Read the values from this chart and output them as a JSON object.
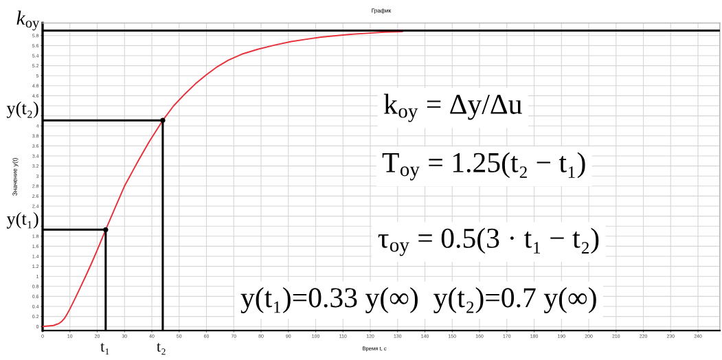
{
  "chart_data": {
    "type": "line",
    "title": "График",
    "xlabel": "Время t, с",
    "ylabel": "Значение y(t)",
    "xlim": [
      0,
      248
    ],
    "xticks": [
      0,
      10,
      20,
      30,
      40,
      50,
      60,
      70,
      80,
      90,
      100,
      110,
      120,
      130,
      140,
      150,
      160,
      170,
      180,
      190,
      200,
      210,
      220,
      230,
      240
    ],
    "ylim": [
      -0.08,
      6.05
    ],
    "yticks": [
      0,
      0.2,
      0.4,
      0.6,
      0.8,
      1,
      1.2,
      1.4,
      1.6,
      1.8,
      {
        "value": 2,
        "label": null
      },
      {
        "value": 2.2,
        "label": null
      },
      2.4,
      2.6,
      2.8,
      3,
      3.2,
      3.4,
      3.6,
      3.8,
      4,
      {
        "value": 4.2,
        "label": null
      },
      {
        "value": 4.4,
        "label": null
      },
      4.6,
      4.8,
      5,
      5.2,
      5.4,
      5.6,
      5.8
    ],
    "grid": true,
    "series": [
      {
        "color": "#e8303a",
        "x": [
          0,
          2,
          4,
          5,
          6,
          7,
          8,
          9,
          10,
          12,
          14,
          16,
          18,
          20,
          23.1,
          26.5,
          30,
          33,
          35,
          39,
          44,
          48,
          52,
          56,
          60,
          64,
          68,
          73,
          79,
          85,
          91,
          97,
          102,
          108,
          114,
          120,
          125,
          132
        ],
        "values": [
          0,
          0.01,
          0.02,
          0.04,
          0.06,
          0.1,
          0.16,
          0.25,
          0.35,
          0.57,
          0.8,
          1.03,
          1.27,
          1.52,
          1.93,
          2.36,
          2.8,
          3.1,
          3.3,
          3.68,
          4.11,
          4.4,
          4.63,
          4.84,
          5.02,
          5.18,
          5.31,
          5.43,
          5.53,
          5.61,
          5.68,
          5.73,
          5.77,
          5.8,
          5.83,
          5.85,
          5.87,
          5.88
        ]
      },
      {
        "type": "line",
        "color": "#000000",
        "x": [
          0,
          23.1,
          23.1
        ],
        "values": [
          1.93,
          1.93,
          -0.08
        ]
      },
      {
        "type": "line",
        "color": "#000000",
        "x": [
          0,
          44,
          44
        ],
        "values": [
          4.11,
          4.11,
          -0.08
        ]
      },
      {
        "type": "scatter",
        "color": "#000000",
        "marker": "circle",
        "x": [
          23.1,
          44
        ],
        "values": [
          1.93,
          4.11
        ]
      }
    ],
    "ref_lines": [
      {
        "axis": "y",
        "value": 5.9,
        "label": "k$_{oy}$",
        "color": "#000000"
      }
    ],
    "annotations": [
      "y(t₂)",
      "y(t₁)",
      "t₁",
      "t₂",
      "k$_{oy}$ = Δy/Δu",
      "T$_{oy}$ = 1.25(t₂ − t₁)",
      "τ$_{oy}$ = 0.5(3 · t₁ − t₂)",
      "y(t₁)=0.33 y(∞)  y(t₂)=0.7 y(∞)"
    ]
  }
}
